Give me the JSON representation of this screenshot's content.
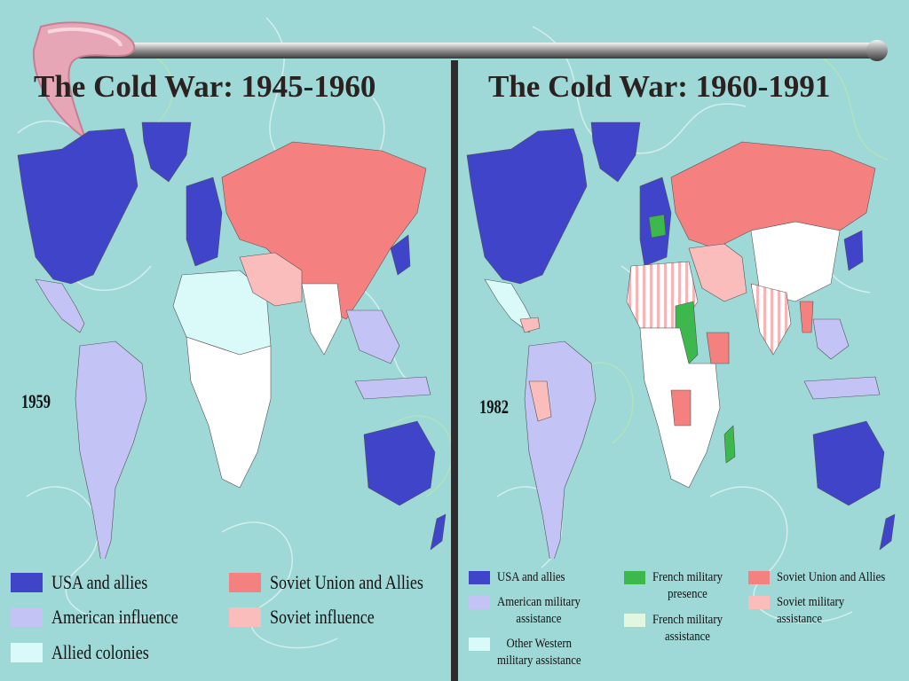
{
  "slide": {
    "left_title": "The Cold War: 1945-1960",
    "right_title": "The Cold War: 1960-1991",
    "left_year": "1959",
    "right_year": "1982"
  },
  "colors": {
    "background": "#9ed9d8",
    "usa_allies": "#3f44c8",
    "american_influence": "#c3c3f5",
    "allied_colonies": "#dafafa",
    "soviet_allies": "#f58080",
    "soviet_influence": "#fbbcbc",
    "french_presence": "#3cb84c",
    "french_assistance": "#e2f7e0",
    "western_assistance": "#dafafa",
    "neutral": "#ffffff"
  },
  "legend_left": [
    {
      "label": "USA and allies",
      "color": "#3f44c8"
    },
    {
      "label": "American influence",
      "color": "#c3c3f5"
    },
    {
      "label": "Allied colonies",
      "color": "#dafafa"
    },
    {
      "label": "Soviet Union and Allies",
      "color": "#f58080"
    },
    {
      "label": "Soviet influence",
      "color": "#fbbcbc"
    }
  ],
  "legend_right": [
    {
      "label": "USA and allies",
      "color": "#3f44c8"
    },
    {
      "label": "American military\nassistance",
      "color": "#c3c3f5"
    },
    {
      "label": "Other Western\nmilitary assistance",
      "color": "#dafafa"
    },
    {
      "label": "French military\npresence",
      "color": "#3cb84c"
    },
    {
      "label": "French military\nassistance",
      "color": "#e2f7e0"
    },
    {
      "label": "Soviet Union and Allies",
      "color": "#f58080"
    },
    {
      "label": "Soviet military assistance",
      "color": "#fbbcbc"
    }
  ]
}
